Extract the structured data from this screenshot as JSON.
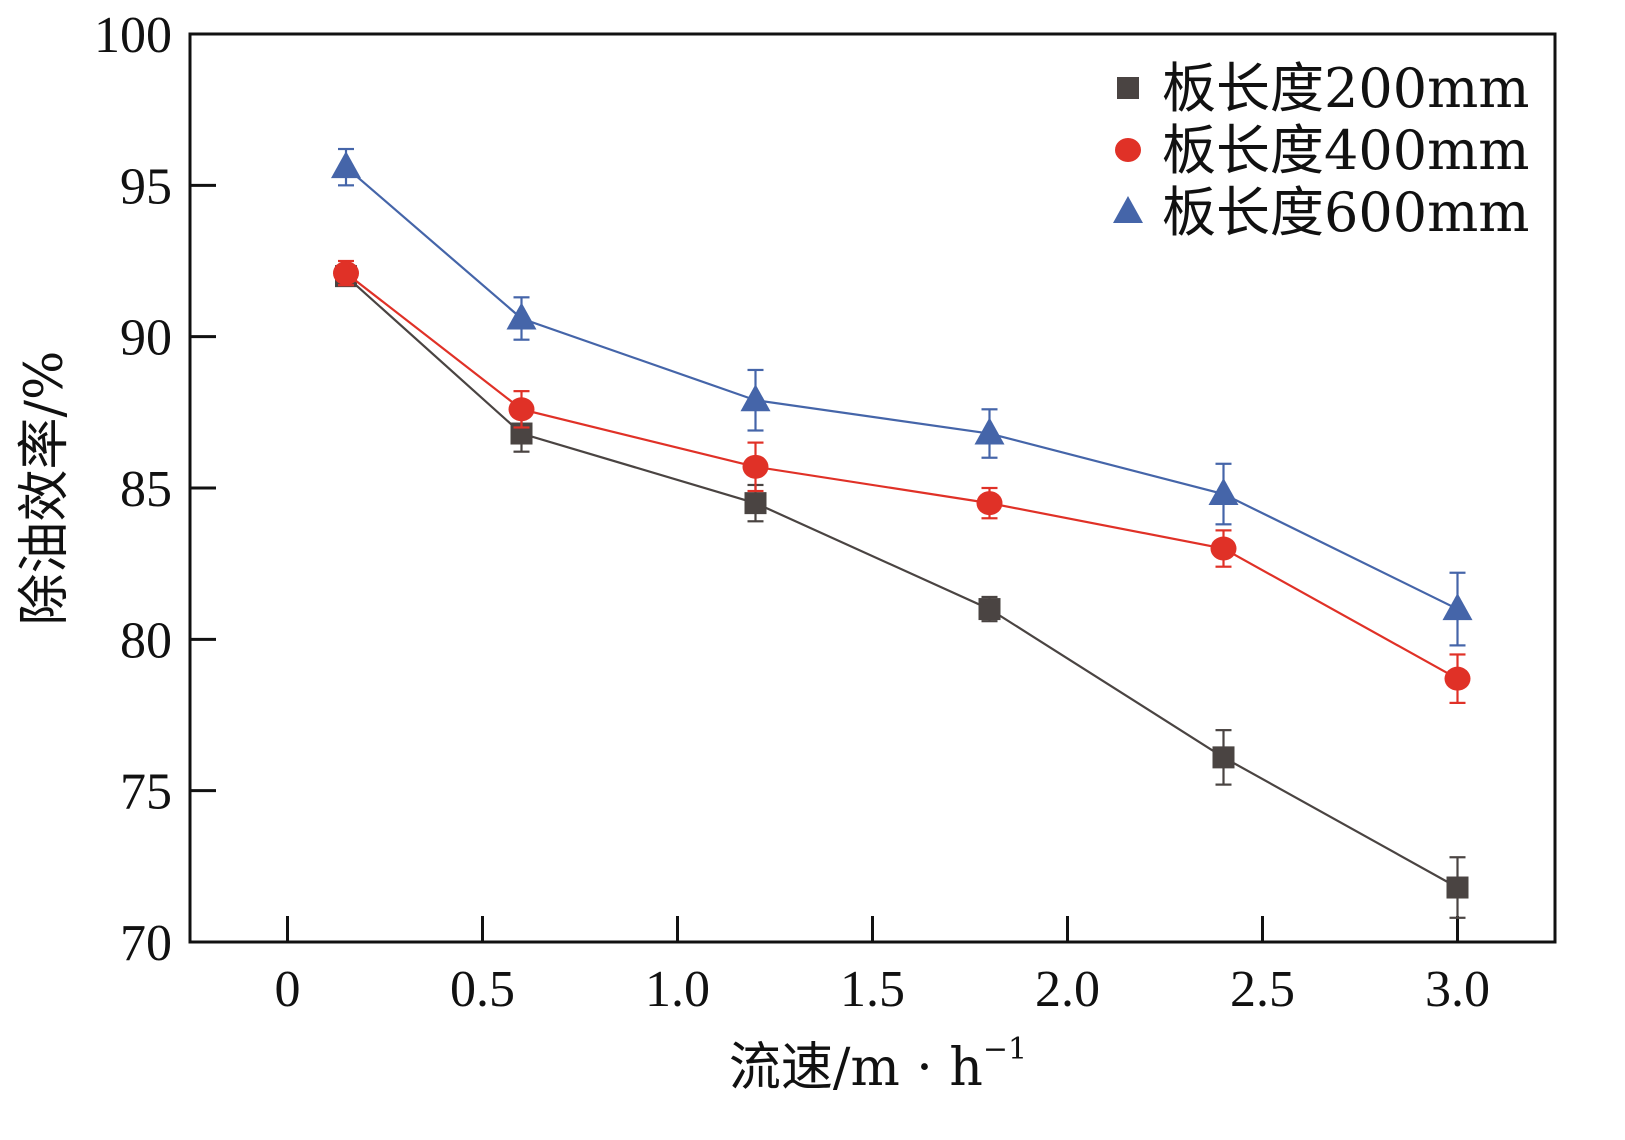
{
  "chart_data": {
    "type": "line",
    "title": "",
    "xlabel": "流速/m · h",
    "xlabel_superscript": "−1",
    "ylabel": "除油效率/%",
    "xlim": [
      -0.25,
      3.25
    ],
    "ylim": [
      70,
      100
    ],
    "x_ticks": [
      0,
      0.5,
      1.0,
      1.5,
      2.0,
      2.5,
      3.0
    ],
    "x_tick_labels": [
      "0",
      "0.5",
      "1.0",
      "1.5",
      "2.0",
      "2.5",
      "3.0"
    ],
    "y_ticks": [
      70,
      75,
      80,
      85,
      90,
      95,
      100
    ],
    "y_tick_labels": [
      "70",
      "75",
      "80",
      "85",
      "90",
      "95",
      "100"
    ],
    "grid": false,
    "legend_position": "top-right",
    "x": [
      0.15,
      0.6,
      1.2,
      1.8,
      2.4,
      3.0
    ],
    "series": [
      {
        "name": "板长度200mm",
        "marker": "square",
        "color": "#4a4442",
        "values": [
          92.0,
          86.8,
          84.5,
          81.0,
          76.1,
          71.8
        ],
        "errors": [
          0.3,
          0.6,
          0.6,
          0.4,
          0.9,
          1.0
        ]
      },
      {
        "name": "板长度400mm",
        "marker": "circle",
        "color": "#e03127",
        "values": [
          92.1,
          87.6,
          85.7,
          84.5,
          83.0,
          78.7
        ],
        "errors": [
          0.4,
          0.6,
          0.8,
          0.5,
          0.6,
          0.8
        ]
      },
      {
        "name": "板长度600mm",
        "marker": "triangle",
        "color": "#4565a9",
        "values": [
          95.6,
          90.6,
          87.9,
          86.8,
          84.8,
          81.0
        ],
        "errors": [
          0.6,
          0.7,
          1.0,
          0.8,
          1.0,
          1.2
        ]
      }
    ]
  }
}
